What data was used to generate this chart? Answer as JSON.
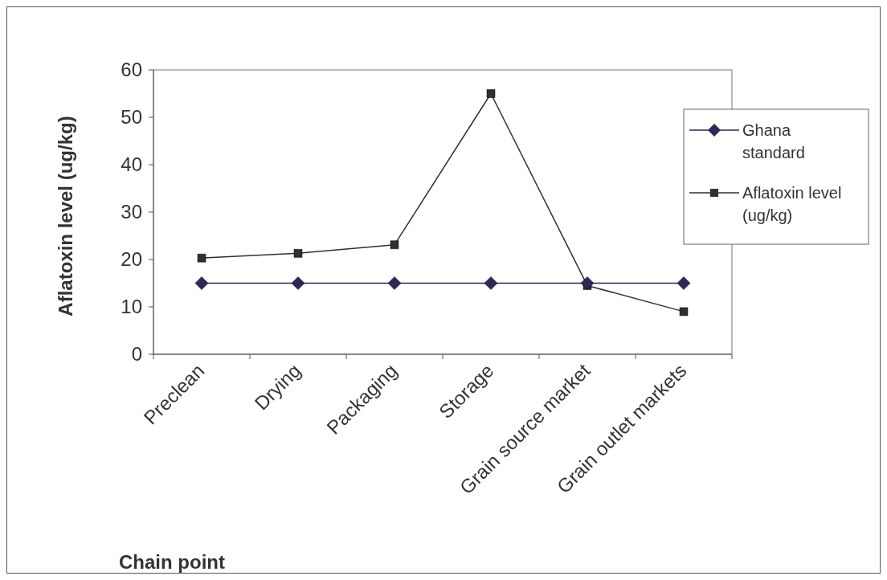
{
  "chart_data": {
    "type": "line",
    "xlabel": "Chain point",
    "ylabel": "Aflatoxin level (ug/kg)",
    "categories": [
      "Preclean",
      "Drying",
      "Packaging",
      "Storage",
      "Grain source market",
      "Grain outlet markets"
    ],
    "ylim": [
      0,
      60
    ],
    "yticks": [
      0,
      10,
      20,
      30,
      40,
      50,
      60
    ],
    "grid": false,
    "legend": "right",
    "series": [
      {
        "name": "Ghana standard",
        "color": "#2a2a5a",
        "marker": "diamond",
        "values": [
          15,
          15,
          15,
          15,
          15,
          15
        ]
      },
      {
        "name": "Aflatoxin level (ug/kg)",
        "color": "#303030",
        "marker": "square",
        "values": [
          20.3,
          21.3,
          23.1,
          55,
          14.5,
          9
        ]
      }
    ]
  }
}
